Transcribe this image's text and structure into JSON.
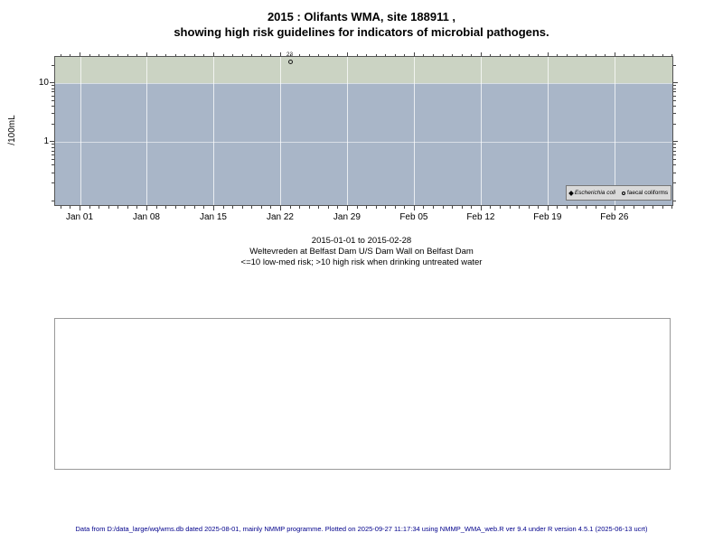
{
  "colors": {
    "plot_bg": "#a9b6c8",
    "high_risk_band": "#cbd3c3",
    "gridline": "#ffffff",
    "legend_bg": "#d9d9d9",
    "footer_text": "#00008b"
  },
  "chart_data": {
    "type": "scatter",
    "title": "2015 : Olifants WMA, site 188911 ,",
    "subtitle": "showing high risk guidelines for indicators of microbial pathogens.",
    "ylabel": "/100mL",
    "yscale": "log",
    "ylim": [
      0.08,
      28
    ],
    "yticks": [
      1,
      10
    ],
    "y_minor_ticks": [
      0.1,
      0.2,
      0.3,
      0.4,
      0.5,
      0.6,
      0.7,
      0.8,
      0.9,
      2,
      3,
      4,
      5,
      6,
      7,
      8,
      9,
      20
    ],
    "x_tick_labels": [
      "Jan 01",
      "Jan 08",
      "Jan 15",
      "Jan 22",
      "Jan 29",
      "Feb 05",
      "Feb 12",
      "Feb 19",
      "Feb 26"
    ],
    "x_axis": {
      "first_frac": 0.0409,
      "week_step_frac": 0.108,
      "minor_day_min": -2,
      "minor_day_max": 62
    },
    "date_range": "2015-01-01 to 2015-02-28",
    "high_risk_threshold": 10,
    "grid": "vertical-weekly",
    "legend_position": "bottom-right-inside",
    "series": [
      {
        "name": "Escherichia coli",
        "marker": "filled-diamond",
        "points": []
      },
      {
        "name": "faecal coliforms",
        "marker": "open-circle",
        "points": [
          {
            "x_day_offset": 22,
            "near_tick": "Jan 22",
            "value": 23,
            "label": "23"
          }
        ]
      }
    ]
  },
  "legend": {
    "items": [
      {
        "label": "Escherichia coli",
        "marker": "filled-diamond"
      },
      {
        "label": "faecal coliforms",
        "marker": "open-circle"
      }
    ]
  },
  "caption": {
    "line1": "2015-01-01 to 2015-02-28",
    "line2": "Weltevreden at Belfast Dam U/S Dam Wall on Belfast Dam",
    "line3": "<=10 low-med risk; >10 high risk when drinking untreated water"
  },
  "footer": {
    "text": "Data from D:/data_large/wq/wms.db dated 2025-08-01, mainly NMMP programme. Plotted on 2025-09-27 11:17:34 using NMMP_WMA_web.R ver 9.4 under R version 4.5.1 (2025-06-13 ucrt)"
  }
}
